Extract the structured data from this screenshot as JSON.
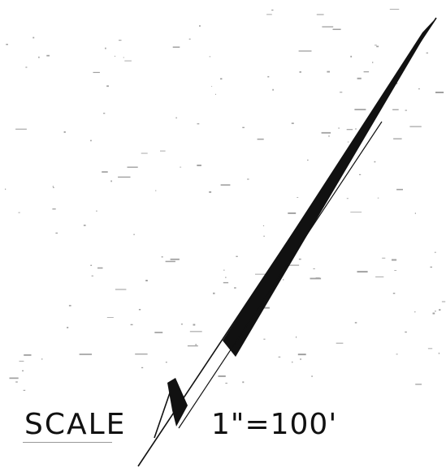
{
  "scale_label": "SCALE",
  "scale_value": "1\"=100'",
  "colors": {
    "ink": "#111111",
    "paper": "#ffffff",
    "specks": "#555555"
  }
}
